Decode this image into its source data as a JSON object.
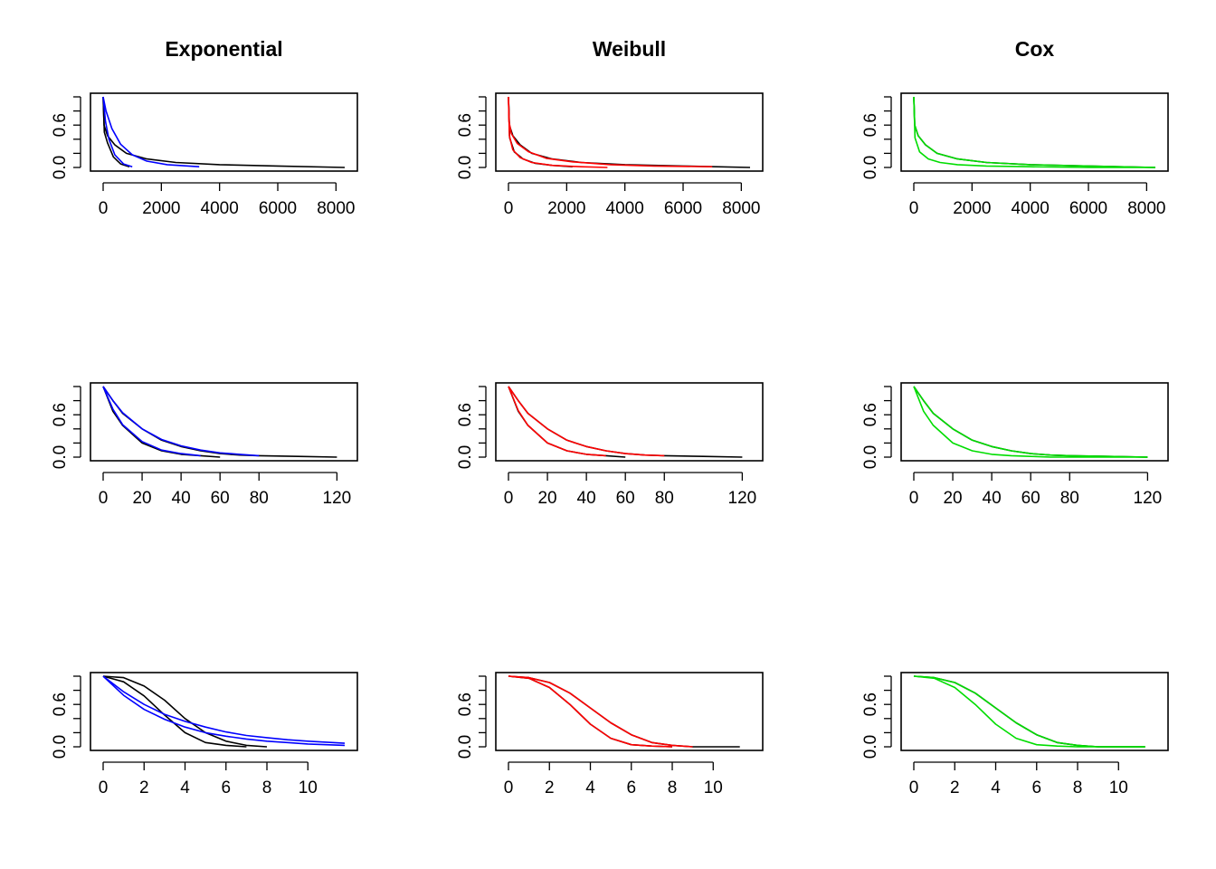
{
  "columns": [
    {
      "title": "Exponential",
      "fit_color": "#0000ff"
    },
    {
      "title": "Weibull",
      "fit_color": "#ff0000"
    },
    {
      "title": "Cox",
      "fit_color": "#00dd00"
    }
  ],
  "observed_color": "#000000",
  "chart_data": [
    {
      "row": 0,
      "col": 0,
      "type": "line",
      "title": "Exponential",
      "xlim": [
        0,
        8300
      ],
      "ylim": [
        0,
        1
      ],
      "xticks": [
        0,
        2000,
        4000,
        6000,
        8000
      ],
      "yticks": [
        0.0,
        0.6
      ],
      "series": [
        {
          "role": "observed",
          "color": "#000000",
          "x": [
            0,
            30,
            150,
            400,
            800,
            1500,
            2500,
            4000,
            6000,
            8300
          ],
          "y": [
            1.0,
            0.6,
            0.45,
            0.32,
            0.2,
            0.12,
            0.07,
            0.04,
            0.02,
            0.0
          ]
        },
        {
          "role": "observed",
          "color": "#000000",
          "x": [
            0,
            40,
            150,
            350,
            600,
            900
          ],
          "y": [
            1.0,
            0.5,
            0.35,
            0.15,
            0.05,
            0.01
          ]
        },
        {
          "role": "fit",
          "color": "#0000ff",
          "x": [
            0,
            100,
            300,
            600,
            1000,
            1500,
            2200,
            3300
          ],
          "y": [
            1.0,
            0.8,
            0.55,
            0.33,
            0.18,
            0.09,
            0.04,
            0.01
          ]
        },
        {
          "role": "fit",
          "color": "#0000ff",
          "x": [
            0,
            80,
            200,
            400,
            700,
            1000
          ],
          "y": [
            1.0,
            0.65,
            0.4,
            0.18,
            0.05,
            0.01
          ]
        }
      ]
    },
    {
      "row": 0,
      "col": 1,
      "type": "line",
      "title": "Weibull",
      "xlim": [
        0,
        8300
      ],
      "ylim": [
        0,
        1
      ],
      "xticks": [
        0,
        2000,
        4000,
        6000,
        8000
      ],
      "yticks": [
        0.0,
        0.6
      ],
      "series": [
        {
          "role": "observed",
          "color": "#000000",
          "x": [
            0,
            30,
            150,
            400,
            800,
            1500,
            2500,
            4000,
            6000,
            8300
          ],
          "y": [
            1.0,
            0.6,
            0.45,
            0.32,
            0.2,
            0.12,
            0.07,
            0.04,
            0.02,
            0.0
          ]
        },
        {
          "role": "observed",
          "color": "#000000",
          "x": [
            0,
            40,
            200,
            500,
            900,
            1500,
            2200
          ],
          "y": [
            1.0,
            0.42,
            0.22,
            0.12,
            0.06,
            0.03,
            0.01
          ]
        },
        {
          "role": "fit",
          "color": "#ff0000",
          "x": [
            0,
            20,
            100,
            300,
            700,
            1300,
            2200,
            3500,
            5000,
            7000
          ],
          "y": [
            1.0,
            0.65,
            0.48,
            0.34,
            0.22,
            0.13,
            0.08,
            0.04,
            0.02,
            0.01
          ]
        },
        {
          "role": "fit",
          "color": "#ff0000",
          "x": [
            0,
            30,
            150,
            400,
            800,
            1500,
            2500,
            3400
          ],
          "y": [
            1.0,
            0.45,
            0.25,
            0.14,
            0.07,
            0.03,
            0.01,
            0.0
          ]
        }
      ]
    },
    {
      "row": 0,
      "col": 2,
      "type": "line",
      "title": "Cox",
      "xlim": [
        0,
        8300
      ],
      "ylim": [
        0,
        1
      ],
      "xticks": [
        0,
        2000,
        4000,
        6000,
        8000
      ],
      "yticks": [
        0.0,
        0.6
      ],
      "series": [
        {
          "role": "observed",
          "color": "#000000",
          "x": [
            0,
            30,
            150,
            400,
            800,
            1500,
            2500,
            4000,
            6000,
            8300
          ],
          "y": [
            1.0,
            0.6,
            0.45,
            0.32,
            0.2,
            0.12,
            0.07,
            0.04,
            0.02,
            0.0
          ]
        },
        {
          "role": "fit",
          "color": "#00dd00",
          "x": [
            0,
            30,
            150,
            400,
            800,
            1500,
            2500,
            4000,
            6000,
            8300
          ],
          "y": [
            1.0,
            0.6,
            0.45,
            0.32,
            0.2,
            0.12,
            0.07,
            0.04,
            0.02,
            0.0
          ]
        },
        {
          "role": "fit",
          "color": "#00dd00",
          "x": [
            0,
            40,
            200,
            500,
            900,
            1500,
            2500,
            4000,
            6000,
            8300
          ],
          "y": [
            1.0,
            0.42,
            0.22,
            0.12,
            0.07,
            0.04,
            0.02,
            0.01,
            0.0,
            0.0
          ]
        }
      ]
    },
    {
      "row": 1,
      "col": 0,
      "type": "line",
      "title": "",
      "xlim": [
        0,
        124
      ],
      "ylim": [
        0,
        1
      ],
      "xticks": [
        0,
        20,
        40,
        60,
        80,
        120
      ],
      "yticks": [
        0.0,
        0.6
      ],
      "series": [
        {
          "role": "observed",
          "color": "#000000",
          "x": [
            0,
            5,
            10,
            20,
            30,
            40,
            50,
            60,
            70,
            80,
            100,
            120
          ],
          "y": [
            1.0,
            0.8,
            0.62,
            0.4,
            0.24,
            0.15,
            0.09,
            0.05,
            0.03,
            0.02,
            0.01,
            0.0
          ]
        },
        {
          "role": "observed",
          "color": "#000000",
          "x": [
            0,
            5,
            10,
            20,
            30,
            40,
            50,
            60
          ],
          "y": [
            1.0,
            0.65,
            0.45,
            0.2,
            0.09,
            0.04,
            0.02,
            0.0
          ]
        },
        {
          "role": "fit",
          "color": "#0000ff",
          "x": [
            0,
            5,
            10,
            20,
            30,
            40,
            50,
            60,
            70,
            80
          ],
          "y": [
            1.0,
            0.8,
            0.63,
            0.4,
            0.25,
            0.16,
            0.1,
            0.06,
            0.04,
            0.02
          ]
        },
        {
          "role": "fit",
          "color": "#0000ff",
          "x": [
            0,
            5,
            10,
            20,
            30,
            40,
            50
          ],
          "y": [
            1.0,
            0.68,
            0.46,
            0.22,
            0.1,
            0.05,
            0.02
          ]
        }
      ]
    },
    {
      "row": 1,
      "col": 1,
      "type": "line",
      "title": "",
      "xlim": [
        0,
        124
      ],
      "ylim": [
        0,
        1
      ],
      "xticks": [
        0,
        20,
        40,
        60,
        80,
        120
      ],
      "yticks": [
        0.0,
        0.6
      ],
      "series": [
        {
          "role": "observed",
          "color": "#000000",
          "x": [
            0,
            5,
            10,
            20,
            30,
            40,
            50,
            60,
            70,
            80,
            100,
            120
          ],
          "y": [
            1.0,
            0.8,
            0.62,
            0.4,
            0.24,
            0.15,
            0.09,
            0.05,
            0.03,
            0.02,
            0.01,
            0.0
          ]
        },
        {
          "role": "observed",
          "color": "#000000",
          "x": [
            0,
            5,
            10,
            20,
            30,
            40,
            50,
            60
          ],
          "y": [
            1.0,
            0.65,
            0.45,
            0.2,
            0.09,
            0.04,
            0.02,
            0.0
          ]
        },
        {
          "role": "fit",
          "color": "#ff0000",
          "x": [
            0,
            5,
            10,
            20,
            30,
            40,
            50,
            60,
            70,
            80
          ],
          "y": [
            1.0,
            0.8,
            0.62,
            0.4,
            0.24,
            0.15,
            0.09,
            0.05,
            0.03,
            0.02
          ]
        },
        {
          "role": "fit",
          "color": "#ff0000",
          "x": [
            0,
            5,
            10,
            20,
            30,
            40,
            50
          ],
          "y": [
            1.0,
            0.66,
            0.45,
            0.2,
            0.09,
            0.04,
            0.02
          ]
        }
      ]
    },
    {
      "row": 1,
      "col": 2,
      "type": "line",
      "title": "",
      "xlim": [
        0,
        124
      ],
      "ylim": [
        0,
        1
      ],
      "xticks": [
        0,
        20,
        40,
        60,
        80,
        120
      ],
      "yticks": [
        0.0,
        0.6
      ],
      "series": [
        {
          "role": "observed",
          "color": "#000000",
          "x": [
            0,
            5,
            10,
            20,
            30,
            40,
            50,
            60,
            70,
            80,
            100,
            120
          ],
          "y": [
            1.0,
            0.8,
            0.62,
            0.4,
            0.24,
            0.15,
            0.09,
            0.05,
            0.03,
            0.02,
            0.01,
            0.0
          ]
        },
        {
          "role": "fit",
          "color": "#00dd00",
          "x": [
            0,
            5,
            10,
            20,
            30,
            40,
            50,
            60,
            70,
            80,
            100,
            120
          ],
          "y": [
            1.0,
            0.8,
            0.62,
            0.4,
            0.24,
            0.15,
            0.09,
            0.05,
            0.03,
            0.02,
            0.01,
            0.0
          ]
        },
        {
          "role": "fit",
          "color": "#00dd00",
          "x": [
            0,
            5,
            10,
            20,
            30,
            40,
            50,
            60,
            70,
            80,
            100,
            120
          ],
          "y": [
            1.0,
            0.65,
            0.45,
            0.2,
            0.09,
            0.04,
            0.02,
            0.01,
            0.0,
            0.0,
            0.0,
            0.0
          ]
        }
      ]
    },
    {
      "row": 2,
      "col": 0,
      "type": "line",
      "title": "",
      "xlim": [
        0,
        11.8
      ],
      "ylim": [
        0,
        1
      ],
      "xticks": [
        0,
        2,
        4,
        6,
        8,
        10
      ],
      "yticks": [
        0.0,
        0.6
      ],
      "series": [
        {
          "role": "observed",
          "color": "#000000",
          "x": [
            0,
            1,
            2,
            3,
            4,
            5,
            6,
            7,
            8
          ],
          "y": [
            1.0,
            0.98,
            0.86,
            0.66,
            0.4,
            0.2,
            0.08,
            0.02,
            0.0
          ]
        },
        {
          "role": "observed",
          "color": "#000000",
          "x": [
            0,
            1,
            2,
            3,
            4,
            5,
            6,
            7
          ],
          "y": [
            1.0,
            0.92,
            0.72,
            0.45,
            0.2,
            0.06,
            0.02,
            0.0
          ]
        },
        {
          "role": "fit",
          "color": "#0000ff",
          "x": [
            0,
            1,
            2,
            3,
            4,
            5,
            6,
            7,
            8,
            9,
            10,
            11.8
          ],
          "y": [
            1.0,
            0.78,
            0.6,
            0.46,
            0.36,
            0.28,
            0.21,
            0.16,
            0.13,
            0.1,
            0.08,
            0.05
          ]
        },
        {
          "role": "fit",
          "color": "#0000ff",
          "x": [
            0,
            1,
            2,
            3,
            4,
            5,
            6,
            7,
            8,
            9,
            10,
            11.8
          ],
          "y": [
            1.0,
            0.73,
            0.53,
            0.39,
            0.28,
            0.2,
            0.15,
            0.11,
            0.08,
            0.06,
            0.04,
            0.02
          ]
        }
      ]
    },
    {
      "row": 2,
      "col": 1,
      "type": "line",
      "title": "",
      "xlim": [
        0,
        11.8
      ],
      "ylim": [
        0,
        1
      ],
      "xticks": [
        0,
        2,
        4,
        6,
        8,
        10
      ],
      "yticks": [
        0.0,
        0.6
      ],
      "series": [
        {
          "role": "observed",
          "color": "#000000",
          "x": [
            0,
            1,
            2,
            3,
            4,
            5,
            6,
            7,
            8,
            9,
            11.3
          ],
          "y": [
            1.0,
            0.98,
            0.91,
            0.76,
            0.55,
            0.34,
            0.17,
            0.06,
            0.02,
            0.0,
            0.0
          ]
        },
        {
          "role": "observed",
          "color": "#000000",
          "x": [
            0,
            1,
            2,
            3,
            4,
            5,
            6,
            7,
            8
          ],
          "y": [
            1.0,
            0.97,
            0.84,
            0.6,
            0.32,
            0.12,
            0.03,
            0.01,
            0.0
          ]
        },
        {
          "role": "fit",
          "color": "#ff0000",
          "x": [
            0,
            1,
            2,
            3,
            4,
            5,
            6,
            7,
            8,
            9
          ],
          "y": [
            1.0,
            0.98,
            0.91,
            0.76,
            0.55,
            0.34,
            0.17,
            0.06,
            0.02,
            0.0
          ]
        },
        {
          "role": "fit",
          "color": "#ff0000",
          "x": [
            0,
            1,
            2,
            3,
            4,
            5,
            6,
            7,
            8
          ],
          "y": [
            1.0,
            0.97,
            0.84,
            0.6,
            0.32,
            0.12,
            0.03,
            0.01,
            0.0
          ]
        }
      ]
    },
    {
      "row": 2,
      "col": 2,
      "type": "line",
      "title": "",
      "xlim": [
        0,
        11.8
      ],
      "ylim": [
        0,
        1
      ],
      "xticks": [
        0,
        2,
        4,
        6,
        8,
        10
      ],
      "yticks": [
        0.0,
        0.6
      ],
      "series": [
        {
          "role": "observed",
          "color": "#000000",
          "x": [
            0,
            1,
            2,
            3,
            4,
            5,
            6,
            7,
            8,
            9,
            11.3
          ],
          "y": [
            1.0,
            0.98,
            0.91,
            0.76,
            0.55,
            0.34,
            0.17,
            0.06,
            0.02,
            0.0,
            0.0
          ]
        },
        {
          "role": "fit",
          "color": "#00dd00",
          "x": [
            0,
            1,
            2,
            3,
            4,
            5,
            6,
            7,
            8,
            9,
            11.3
          ],
          "y": [
            1.0,
            0.98,
            0.91,
            0.76,
            0.55,
            0.34,
            0.17,
            0.06,
            0.02,
            0.0,
            0.0
          ]
        },
        {
          "role": "fit",
          "color": "#00dd00",
          "x": [
            0,
            1,
            2,
            3,
            4,
            5,
            6,
            7,
            8,
            9,
            11.3
          ],
          "y": [
            1.0,
            0.97,
            0.84,
            0.6,
            0.32,
            0.12,
            0.03,
            0.01,
            0.0,
            0.0,
            0.0
          ]
        }
      ]
    }
  ]
}
